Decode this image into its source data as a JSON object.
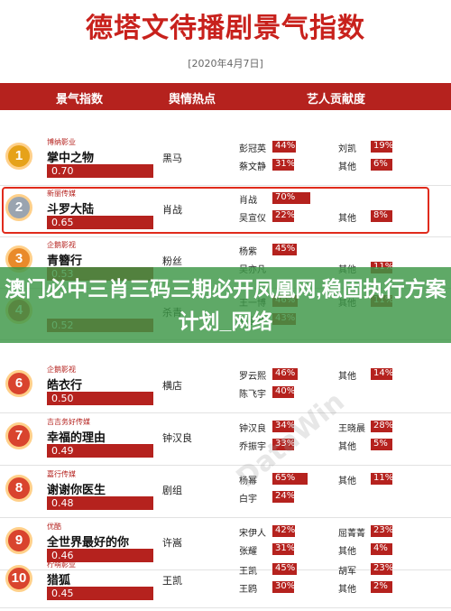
{
  "title": "德塔文待播剧景气指数",
  "date": "[2020年4月7日]",
  "headers": {
    "col1": "景气指数",
    "col2": "舆情热点",
    "col3": "艺人贡献度"
  },
  "banner": "澳门必中三肖三码三期必开凤凰网,稳固执行方案计划_网络",
  "watermark": "DataWin",
  "rows": [
    {
      "rank": "1",
      "tag": "博纳影业",
      "name": "掌中之物",
      "score": "0.70",
      "hot": "黑马",
      "p1": "彭冠英",
      "p1v": "44%",
      "p1n": 44,
      "p2": "蔡文静",
      "p2v": "31%",
      "p2n": 31,
      "p3": "刘凯",
      "p3v": "19%",
      "p3n": 19,
      "p4": "其他",
      "p4v": "6%",
      "p4n": 6
    },
    {
      "rank": "2",
      "tag": "新丽传媒",
      "name": "斗罗大陆",
      "score": "0.65",
      "hot": "肖战",
      "p1": "肖战",
      "p1v": "70%",
      "p1n": 70,
      "p2": "吴宣仪",
      "p2v": "22%",
      "p2n": 22,
      "p3": "",
      "p3v": "",
      "p3n": 0,
      "p4": "其他",
      "p4v": "8%",
      "p4n": 8
    },
    {
      "rank": "3",
      "tag": "企鹅影视",
      "name": "青簪行",
      "score": "0.53",
      "hot": "粉丝",
      "p1": "杨紫",
      "p1v": "45%",
      "p1n": 45,
      "p2": "吴亦凡",
      "p2v": "",
      "p2n": 0,
      "p3": "",
      "p3v": "",
      "p3n": 0,
      "p4": "其他",
      "p4v": "11%",
      "p4n": 11
    },
    {
      "rank": "4",
      "tag": "",
      "name": "",
      "score": "0.52",
      "hot": "杀青",
      "p1": "王一博",
      "p1v": "46%",
      "p1n": 46,
      "p2": "赵丽颖",
      "p2v": "43%",
      "p2n": 43,
      "p3": "其他",
      "p3v": "11%",
      "p3n": 11,
      "p4": "",
      "p4v": "",
      "p4n": 0
    },
    {
      "rank": "6",
      "tag": "企鹅影视",
      "name": "皓衣行",
      "score": "0.50",
      "hot": "横店",
      "p1": "罗云熙",
      "p1v": "46%",
      "p1n": 46,
      "p2": "陈飞宇",
      "p2v": "40%",
      "p2n": 40,
      "p3": "其他",
      "p3v": "14%",
      "p3n": 14,
      "p4": "",
      "p4v": "",
      "p4n": 0
    },
    {
      "rank": "7",
      "tag": "吉吉务好传媒",
      "name": "幸福的理由",
      "score": "0.49",
      "hot": "钟汉良",
      "p1": "钟汉良",
      "p1v": "34%",
      "p1n": 34,
      "p2": "乔振宇",
      "p2v": "33%",
      "p2n": 33,
      "p3": "王晓晨",
      "p3v": "28%",
      "p3n": 28,
      "p4": "其他",
      "p4v": "5%",
      "p4n": 5
    },
    {
      "rank": "8",
      "tag": "嘉行传媒",
      "name": "谢谢你医生",
      "score": "0.48",
      "hot": "剧组",
      "p1": "杨幂",
      "p1v": "65%",
      "p1n": 65,
      "p2": "白宇",
      "p2v": "24%",
      "p2n": 24,
      "p3": "其他",
      "p3v": "11%",
      "p3n": 11,
      "p4": "",
      "p4v": "",
      "p4n": 0
    },
    {
      "rank": "9",
      "tag": "优酷",
      "name": "全世界最好的你",
      "score": "0.46",
      "hot": "许嵩",
      "p1": "宋伊人",
      "p1v": "42%",
      "p1n": 42,
      "p2": "张耀",
      "p2v": "31%",
      "p2n": 31,
      "p3": "屈菁菁",
      "p3v": "23%",
      "p3n": 23,
      "p4": "其他",
      "p4v": "4%",
      "p4n": 4
    },
    {
      "rank": "10",
      "tag": "柠萌影业",
      "name": "猎狐",
      "score": "0.45",
      "hot": "王凯",
      "p1": "王凯",
      "p1v": "45%",
      "p1n": 45,
      "p2": "王鸥",
      "p2v": "30%",
      "p2n": 30,
      "p3": "胡军",
      "p3v": "23%",
      "p3n": 23,
      "p4": "其他",
      "p4v": "2%",
      "p4n": 2
    }
  ],
  "colors": {
    "accent": "#b5221e",
    "banner": "#3c9646",
    "medal_gold": "#e6a21a",
    "medal_silver": "#9aa4b0",
    "medal_red": "#d9442e"
  }
}
